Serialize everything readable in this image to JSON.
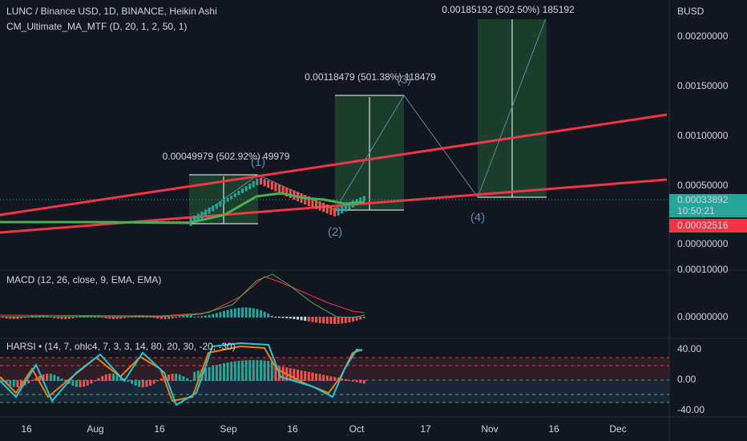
{
  "header": {
    "symbol": "LUNC / Binance USD, 1D, BINANCE, Heikin Ashi",
    "indicator": "CM_Ultimate_MA_MTF (D, 20, 1, 2, 50, 1)",
    "currency": "BUSD"
  },
  "price_axis": [
    "0.00200000",
    "0.00150000",
    "0.00100000",
    "0.00050000",
    "0.00000000"
  ],
  "price_tags": {
    "last": "0.00033892",
    "countdown": "10:50:21",
    "ma": "0.00032516"
  },
  "measures": [
    "0.00049979 (502.92%) 49979",
    "0.00118479 (501.38%) 118479",
    "0.00185192 (502.50%) 185192"
  ],
  "waves": [
    "(1)",
    "(2)",
    "(3)",
    "(4)"
  ],
  "macd": {
    "title": "MACD (12, 26, close, 9, EMA, EMA)",
    "axis": [
      "0.00010000",
      "0.00000000"
    ]
  },
  "harsi": {
    "title": "HARSI • (14, 7, ohlc4, 7, 3, 3, 14, 80, 20, 30, -20, -30)",
    "axis": [
      "40.00",
      "0.00",
      "-40.00"
    ]
  },
  "time_axis": [
    "16",
    "Aug",
    "16",
    "Sep",
    "16",
    "Oct",
    "17",
    "Nov",
    "16",
    "Dec"
  ]
}
